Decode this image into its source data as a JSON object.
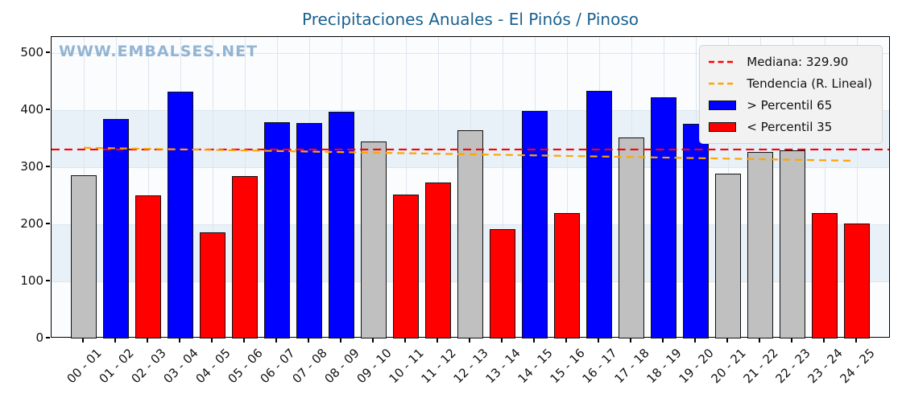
{
  "title": "Precipitaciones Anuales - El Pinós / Pinoso",
  "watermark": "WWW.EMBALSES.NET",
  "legend": {
    "median_label": "Mediana: 329.90",
    "trend_label": "Tendencia (R. Lineal)",
    "above_label": "> Percentil 65",
    "below_label": "< Percentil 35"
  },
  "colors": {
    "above": "#0000ff",
    "below": "#ff0000",
    "mid": "#c0c0c0",
    "median_line": "#ff0000",
    "trend_line": "#ffa500",
    "title": "#1a6190",
    "watermark": "#7aa4c9",
    "band": "#e9f1f8",
    "grid": "#dce6ef",
    "axis": "#000000",
    "legend_bg": "#f2f2f2"
  },
  "chart_data": {
    "type": "bar",
    "title": "Precipitaciones Anuales - El Pinós / Pinoso",
    "xlabel": "",
    "ylabel": "",
    "categories": [
      "00 - 01",
      "01 - 02",
      "02 - 03",
      "03 - 04",
      "04 - 05",
      "05 - 06",
      "06 - 07",
      "07 - 08",
      "08 - 09",
      "09 - 10",
      "10 - 11",
      "11 - 12",
      "12 - 13",
      "13 - 14",
      "14 - 15",
      "15 - 16",
      "16 - 17",
      "17 - 18",
      "18 - 19",
      "19 - 20",
      "20 - 21",
      "21 - 22",
      "22 - 23",
      "23 - 24",
      "24 - 25"
    ],
    "values": [
      286,
      385,
      251,
      432,
      186,
      284,
      379,
      377,
      397,
      345,
      252,
      273,
      365,
      192,
      398,
      220,
      434,
      352,
      422,
      376,
      288,
      326,
      329,
      220,
      201
    ],
    "classes": [
      "mid",
      "above",
      "below",
      "above",
      "below",
      "below",
      "above",
      "above",
      "above",
      "mid",
      "below",
      "below",
      "mid",
      "below",
      "above",
      "below",
      "above",
      "mid",
      "above",
      "above",
      "mid",
      "mid",
      "mid",
      "below",
      "below"
    ],
    "median": 329.9,
    "trend": {
      "start_value": 333,
      "end_value": 310
    },
    "ylim": [
      0,
      528
    ],
    "yticks": [
      0,
      100,
      200,
      300,
      400,
      500
    ],
    "grid": true,
    "band_rows": [
      [
        100,
        200
      ],
      [
        300,
        400
      ]
    ],
    "legend_position": "upper right"
  }
}
